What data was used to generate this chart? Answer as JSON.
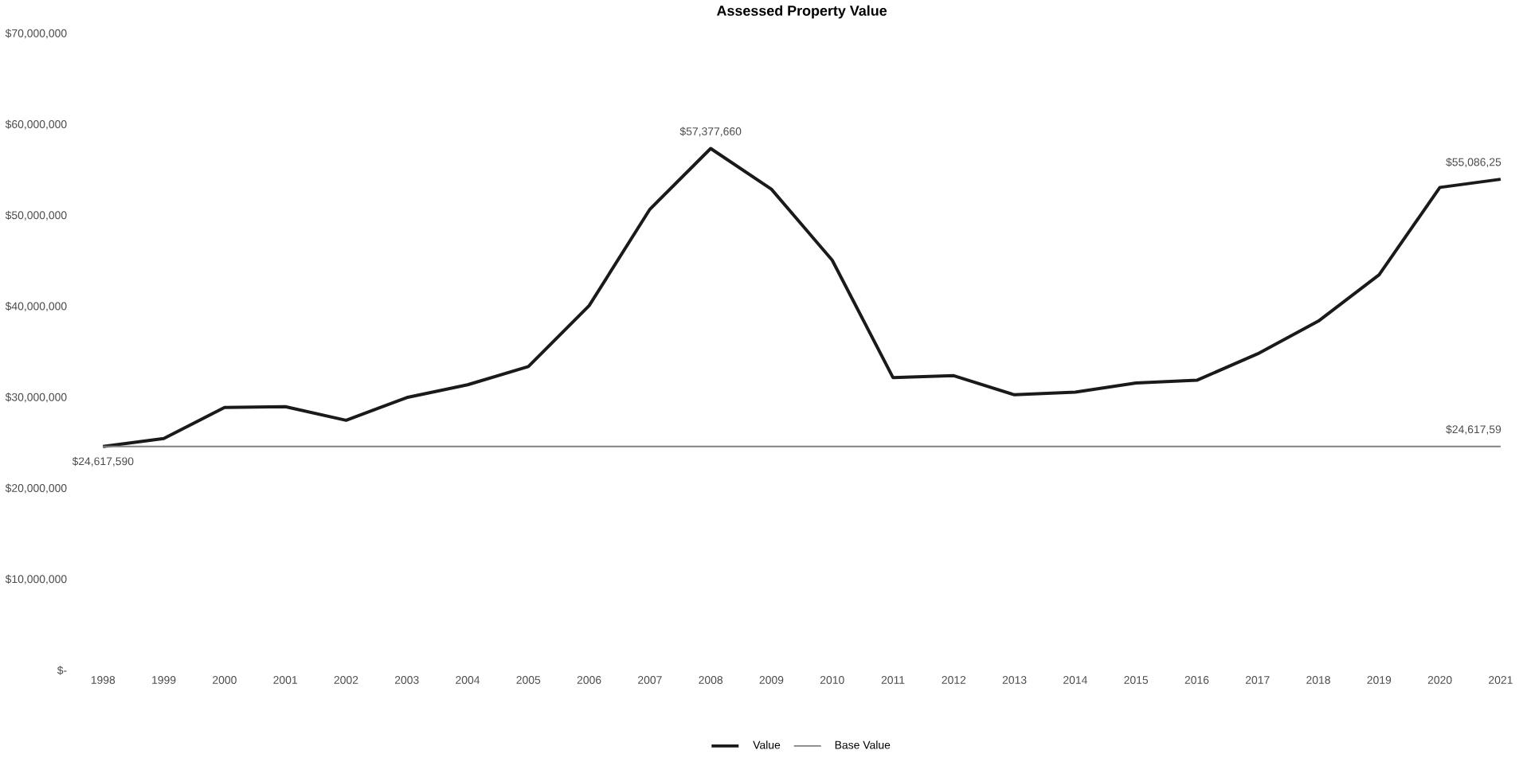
{
  "chart_data": {
    "type": "line",
    "title": "Assessed Property Value",
    "categories": [
      "1998",
      "1999",
      "2000",
      "2001",
      "2002",
      "2003",
      "2004",
      "2005",
      "2006",
      "2007",
      "2008",
      "2009",
      "2010",
      "2011",
      "2012",
      "2013",
      "2014",
      "2015",
      "2016",
      "2017",
      "2018",
      "2019",
      "2020",
      "2021"
    ],
    "series": [
      {
        "name": "Value",
        "color": "#1a1a1a",
        "values": [
          24617590,
          25500000,
          28900000,
          29000000,
          27500000,
          30000000,
          31400000,
          33400000,
          40100000,
          50700000,
          57377660,
          52900000,
          45100000,
          32200000,
          32400000,
          30300000,
          30600000,
          31600000,
          31900000,
          34800000,
          38400000,
          43500000,
          53100000,
          54000000
        ],
        "value_labels": [
          null,
          null,
          null,
          null,
          null,
          null,
          null,
          null,
          null,
          null,
          "$57,377,660",
          null,
          null,
          null,
          null,
          null,
          null,
          null,
          null,
          null,
          null,
          null,
          null,
          "$55,086,25"
        ]
      },
      {
        "name": "Base Value",
        "color": "#808080",
        "values": [
          24617590,
          24617590,
          24617590,
          24617590,
          24617590,
          24617590,
          24617590,
          24617590,
          24617590,
          24617590,
          24617590,
          24617590,
          24617590,
          24617590,
          24617590,
          24617590,
          24617590,
          24617590,
          24617590,
          24617590,
          24617590,
          24617590,
          24617590,
          24617590
        ],
        "value_labels": [
          "$24,617,590",
          null,
          null,
          null,
          null,
          null,
          null,
          null,
          null,
          null,
          null,
          null,
          null,
          null,
          null,
          null,
          null,
          null,
          null,
          null,
          null,
          null,
          null,
          "$24,617,59"
        ]
      }
    ],
    "ylim": [
      0,
      70000000
    ],
    "yticks": [
      {
        "value": 0,
        "label": "$-"
      },
      {
        "value": 10000000,
        "label": "$10,000,000"
      },
      {
        "value": 20000000,
        "label": "$20,000,000"
      },
      {
        "value": 30000000,
        "label": "$30,000,000"
      },
      {
        "value": 40000000,
        "label": "$40,000,000"
      },
      {
        "value": 50000000,
        "label": "$50,000,000"
      },
      {
        "value": 60000000,
        "label": "$60,000,000"
      },
      {
        "value": 70000000,
        "label": "$70,000,000"
      }
    ],
    "grid": false,
    "legend": "bottom",
    "marker": "none",
    "line_style": "solid"
  }
}
